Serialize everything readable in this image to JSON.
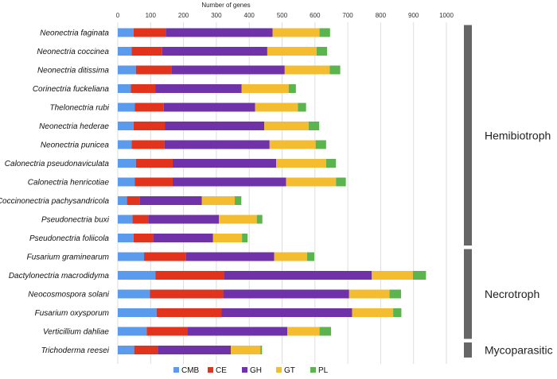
{
  "chart_data": {
    "type": "bar",
    "stacked": true,
    "orientation": "horizontal",
    "title": "",
    "xlabel": "Number of genes",
    "ylabel": "",
    "xlim": [
      0,
      1000
    ],
    "xticks": [
      "0",
      "100",
      "200",
      "300",
      "400",
      "500",
      "600",
      "700",
      "800",
      "900",
      "1000"
    ],
    "grid": true,
    "legend_position": "bottom",
    "categories": [
      "Neonectria faginata",
      "Neonectria coccinea",
      "Neonectria ditissima",
      "Corinectria fuckeliana",
      "Thelonectria rubi",
      "Neonectria hederae",
      "Neonectria punicea",
      "Calonectria pseudonaviculata",
      "Calonectria henricotiae",
      "Coccinonectria pachysandricola",
      "Pseudonectria buxi",
      "Pseudonectria foliicola",
      "Fusarium graminearum",
      "Dactylonectria macrodidyma",
      "Neocosmospora solani",
      "Fusarium oxysporum",
      "Verticillium dahliae",
      "Trichoderma reesei"
    ],
    "series": [
      {
        "name": "CMB",
        "color": "#5b9bee",
        "values": [
          48,
          42,
          55,
          40,
          52,
          48,
          42,
          55,
          52,
          28,
          45,
          48,
          80,
          115,
          98,
          118,
          88,
          50
        ]
      },
      {
        "name": "CE",
        "color": "#e2341d",
        "values": [
          98,
          93,
          108,
          75,
          88,
          95,
          100,
          112,
          115,
          38,
          48,
          60,
          128,
          208,
          223,
          198,
          123,
          72
        ]
      },
      {
        "name": "GH",
        "color": "#6f32a8",
        "values": [
          325,
          320,
          345,
          262,
          278,
          303,
          320,
          315,
          345,
          190,
          215,
          182,
          268,
          450,
          383,
          397,
          305,
          222
        ]
      },
      {
        "name": "GT",
        "color": "#f4bd30",
        "values": [
          143,
          150,
          137,
          143,
          130,
          135,
          140,
          152,
          152,
          100,
          115,
          88,
          100,
          125,
          123,
          125,
          98,
          90
        ]
      },
      {
        "name": "PL",
        "color": "#5cb44e",
        "values": [
          32,
          32,
          32,
          22,
          25,
          32,
          32,
          30,
          30,
          20,
          17,
          17,
          22,
          40,
          35,
          25,
          35,
          5
        ]
      }
    ],
    "groups": [
      {
        "label": "Hemibiotroph",
        "first": 0,
        "last": 11
      },
      {
        "label": "Necrotroph",
        "first": 12,
        "last": 16
      },
      {
        "label": "Mycoparasitic",
        "first": 17,
        "last": 17
      }
    ]
  }
}
